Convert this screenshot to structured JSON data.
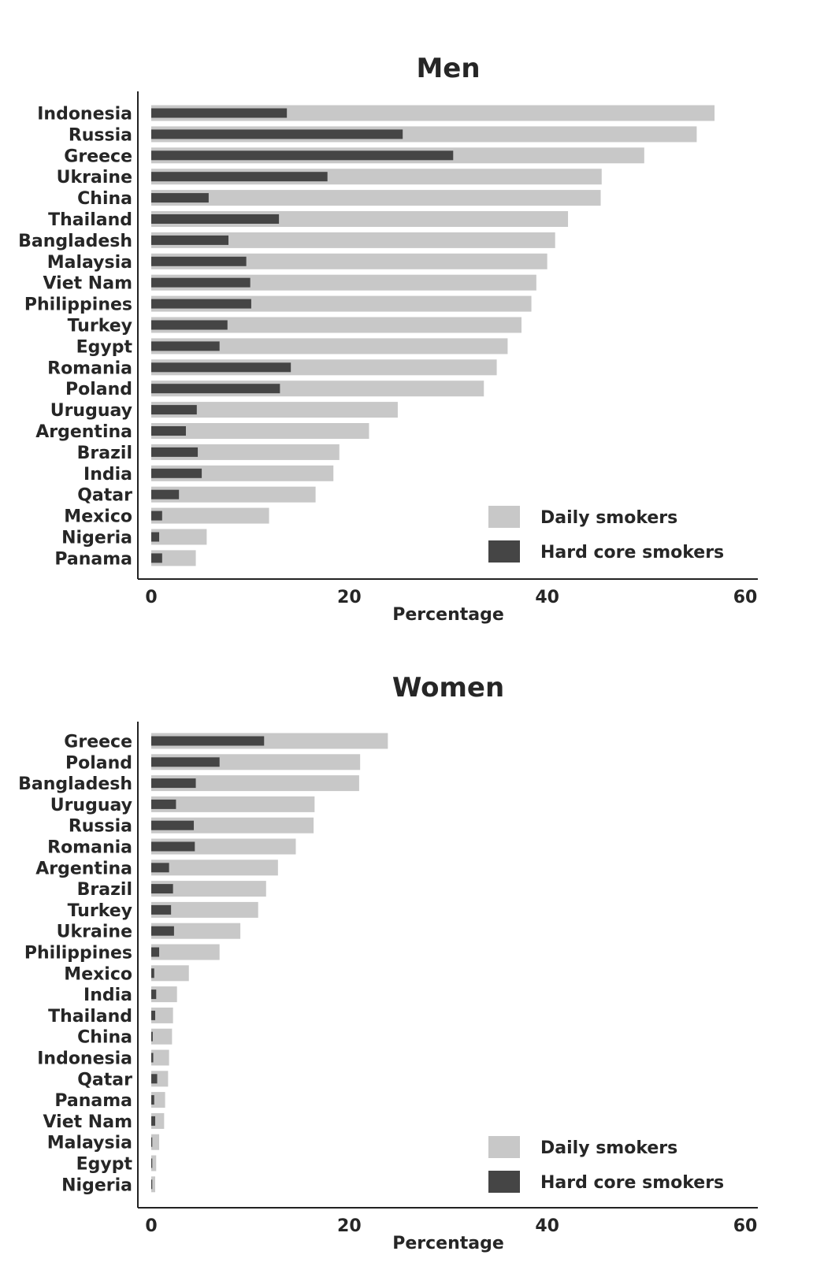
{
  "chart_data": [
    {
      "type": "bar",
      "orientation": "horizontal",
      "title": "Men",
      "xlabel": "Percentage",
      "ylabel": "",
      "xlim": [
        0,
        60
      ],
      "xticks": [
        0,
        20,
        40,
        60
      ],
      "xtick_labels": [
        "0",
        "20",
        "40",
        "60"
      ],
      "categories": [
        "Indonesia",
        "Russia",
        "Greece",
        "Ukraine",
        "China",
        "Thailand",
        "Bangladesh",
        "Malaysia",
        "Viet Nam",
        "Philippines",
        "Turkey",
        "Egypt",
        "Romania",
        "Poland",
        "Uruguay",
        "Argentina",
        "Brazil",
        "India",
        "Qatar",
        "Mexico",
        "Nigeria",
        "Panama"
      ],
      "series": [
        {
          "name": "Daily smokers",
          "color": "#c8c8c8",
          "values": [
            56.9,
            55.1,
            49.8,
            45.5,
            45.4,
            42.1,
            40.8,
            40.0,
            38.9,
            38.4,
            37.4,
            36.0,
            34.9,
            33.6,
            24.9,
            22.0,
            19.0,
            18.4,
            16.6,
            11.9,
            5.6,
            4.5
          ]
        },
        {
          "name": "Hard core smokers",
          "color": "#454545",
          "values": [
            13.7,
            25.4,
            30.5,
            17.8,
            5.8,
            12.9,
            7.8,
            9.6,
            10.0,
            10.1,
            7.7,
            6.9,
            14.1,
            13.0,
            4.6,
            3.5,
            4.7,
            5.1,
            2.8,
            1.1,
            0.8,
            1.1
          ]
        }
      ],
      "legend": {
        "position": "bottom-right",
        "entries": [
          "Daily smokers",
          "Hard core smokers"
        ]
      }
    },
    {
      "type": "bar",
      "orientation": "horizontal",
      "title": "Women",
      "xlabel": "Percentage",
      "ylabel": "",
      "xlim": [
        0,
        60
      ],
      "xticks": [
        0,
        20,
        40,
        60
      ],
      "xtick_labels": [
        "0",
        "20",
        "40",
        "60"
      ],
      "categories": [
        "Greece",
        "Poland",
        "Bangladesh",
        "Uruguay",
        "Russia",
        "Romania",
        "Argentina",
        "Brazil",
        "Turkey",
        "Ukraine",
        "Philippines",
        "Mexico",
        "India",
        "Thailand",
        "China",
        "Indonesia",
        "Qatar",
        "Panama",
        "Viet Nam",
        "Malaysia",
        "Egypt",
        "Nigeria"
      ],
      "series": [
        {
          "name": "Daily smokers",
          "color": "#c8c8c8",
          "values": [
            23.9,
            21.1,
            21.0,
            16.5,
            16.4,
            14.6,
            12.8,
            11.6,
            10.8,
            9.0,
            6.9,
            3.8,
            2.6,
            2.2,
            2.1,
            1.8,
            1.7,
            1.4,
            1.3,
            0.8,
            0.5,
            0.4
          ]
        },
        {
          "name": "Hard core smokers",
          "color": "#454545",
          "values": [
            11.4,
            6.9,
            4.5,
            2.5,
            4.3,
            4.4,
            1.8,
            2.2,
            2.0,
            2.3,
            0.8,
            0.3,
            0.5,
            0.4,
            0.15,
            0.2,
            0.6,
            0.3,
            0.4,
            0.1,
            0.1,
            0.1
          ]
        }
      ],
      "legend": {
        "position": "bottom-right",
        "entries": [
          "Daily smokers",
          "Hard core smokers"
        ]
      }
    }
  ]
}
